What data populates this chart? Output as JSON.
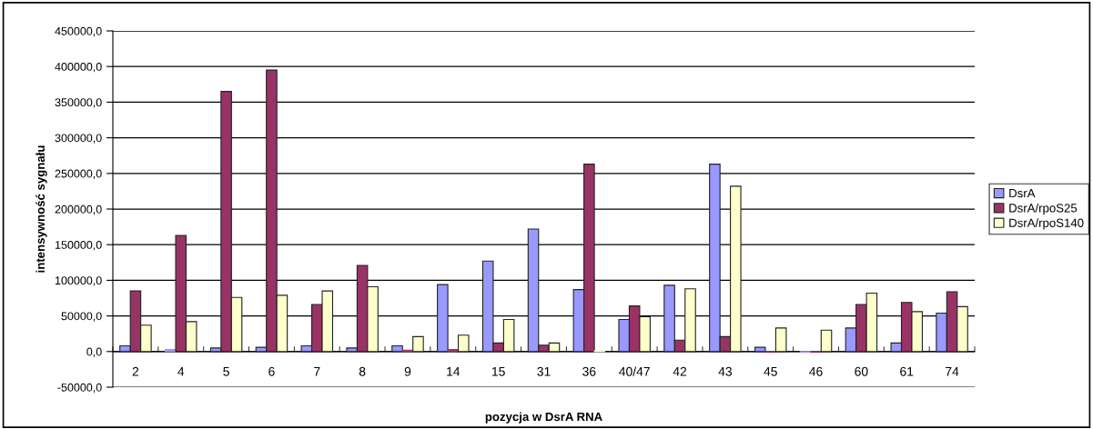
{
  "chart_data": {
    "type": "bar",
    "xlabel": "pozycja w DsrA RNA",
    "ylabel": "intensywność sygnału",
    "categories": [
      "2",
      "4",
      "5",
      "6",
      "7",
      "8",
      "9",
      "14",
      "15",
      "31",
      "36",
      "40/47",
      "42",
      "43",
      "45",
      "46",
      "60",
      "61",
      "74"
    ],
    "series": [
      {
        "name": "DsrA",
        "color": "#9999ff",
        "values": [
          8000,
          3000,
          5000,
          6000,
          8000,
          5000,
          8000,
          94000,
          127000,
          172000,
          87000,
          45000,
          93000,
          263000,
          6000,
          -1000,
          33000,
          12000,
          54000
        ]
      },
      {
        "name": "DsrA/rpoS25",
        "color": "#993366",
        "values": [
          85000,
          163000,
          365000,
          395000,
          66000,
          121000,
          2000,
          3000,
          12000,
          9000,
          263000,
          64000,
          16000,
          21000,
          -1000,
          -1000,
          66000,
          69000,
          84000
        ]
      },
      {
        "name": "DsrA/rpoS140",
        "color": "#ffffcc",
        "values": [
          37000,
          42000,
          76000,
          79000,
          85000,
          91000,
          21000,
          23000,
          45000,
          12000,
          1000,
          49000,
          88000,
          232000,
          33000,
          30000,
          82000,
          56000,
          63000
        ]
      }
    ],
    "ylim": [
      -50000,
      450000
    ],
    "yticks": [
      {
        "value": -50000,
        "label": "-50000,0"
      },
      {
        "value": 0,
        "label": "0,0"
      },
      {
        "value": 50000,
        "label": "50000,0"
      },
      {
        "value": 100000,
        "label": "100000,0"
      },
      {
        "value": 150000,
        "label": "150000,0"
      },
      {
        "value": 200000,
        "label": "200000,0"
      },
      {
        "value": 250000,
        "label": "250000,0"
      },
      {
        "value": 300000,
        "label": "300000,0"
      },
      {
        "value": 350000,
        "label": "350000,0"
      },
      {
        "value": 400000,
        "label": "400000,0"
      },
      {
        "value": 450000,
        "label": "450000,0"
      }
    ],
    "grid": "y",
    "legend": "right"
  }
}
